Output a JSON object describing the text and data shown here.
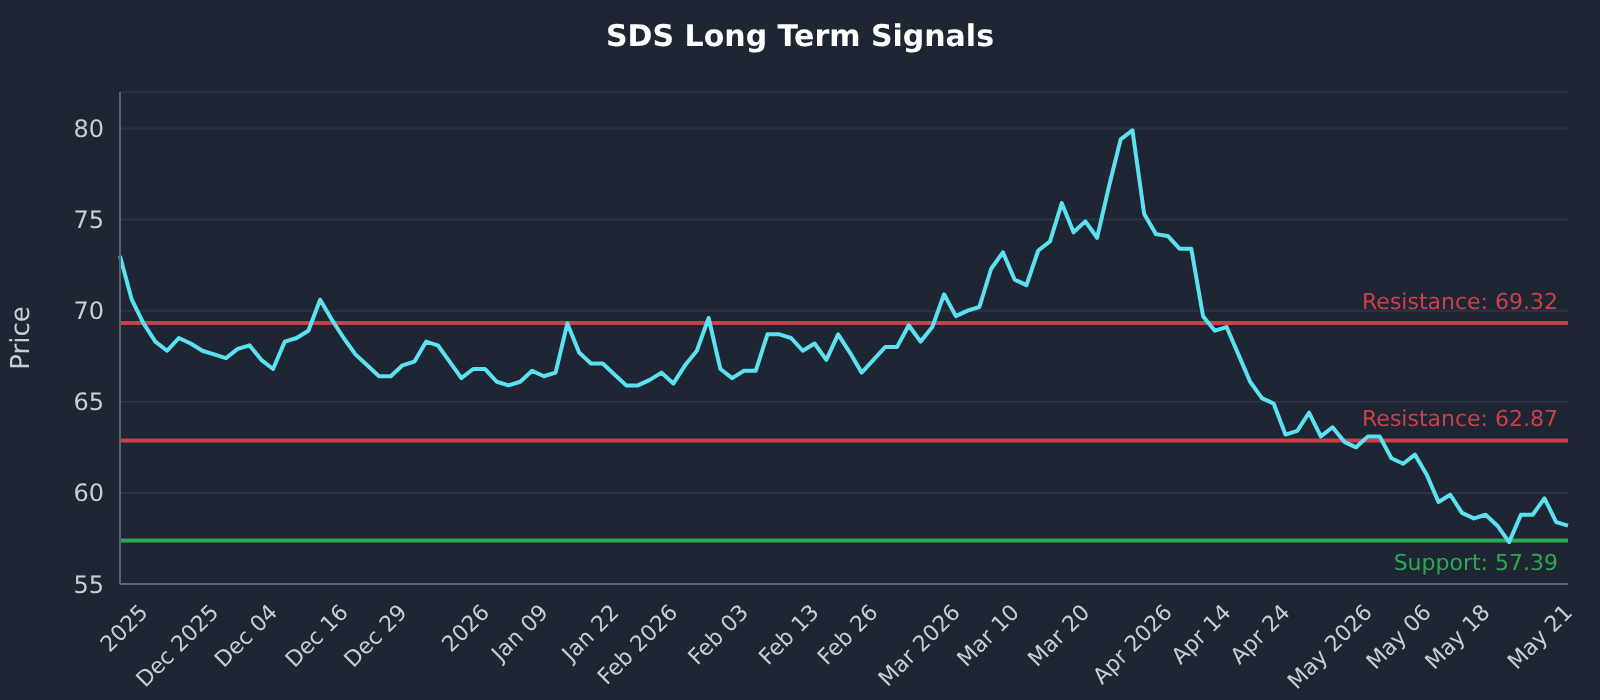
{
  "chart_data": {
    "type": "line",
    "title": "SDS Long Term Signals",
    "ylabel": "Price",
    "categories": [
      null,
      null,
      "2025",
      null,
      null,
      null,
      null,
      null,
      "Dec 2025",
      null,
      null,
      null,
      null,
      "Dec 04",
      null,
      null,
      null,
      null,
      null,
      "Dec 16",
      null,
      null,
      null,
      null,
      "Dec 29",
      null,
      null,
      null,
      null,
      null,
      null,
      "2026",
      null,
      null,
      null,
      null,
      "Jan 09",
      null,
      null,
      null,
      null,
      null,
      "Jan 22",
      null,
      null,
      null,
      null,
      "Feb 2026",
      null,
      null,
      null,
      null,
      null,
      "Feb 03",
      null,
      null,
      null,
      null,
      null,
      "Feb 13",
      null,
      null,
      null,
      null,
      "Feb 26",
      null,
      null,
      null,
      null,
      null,
      null,
      "Mar 2026",
      null,
      null,
      null,
      null,
      "Mar 10",
      null,
      null,
      null,
      null,
      null,
      "Mar 20",
      null,
      null,
      null,
      null,
      null,
      null,
      "Apr 2026",
      null,
      null,
      null,
      null,
      "Apr 14",
      null,
      null,
      null,
      null,
      "Apr 24",
      null,
      null,
      null,
      null,
      null,
      null,
      "May 2026",
      null,
      null,
      null,
      null,
      "May 06",
      null,
      null,
      null,
      null,
      "May 18",
      null,
      null,
      null,
      null,
      null,
      null,
      "May 21"
    ],
    "series": [
      {
        "color": "#5ce1f0",
        "values": [
          73.0,
          70.6,
          69.3,
          68.3,
          67.8,
          68.5,
          68.2,
          67.8,
          67.6,
          67.4,
          67.9,
          68.1,
          67.3,
          66.8,
          68.3,
          68.5,
          68.9,
          70.6,
          69.5,
          68.5,
          67.6,
          67.0,
          66.4,
          66.4,
          67.0,
          67.2,
          68.3,
          68.1,
          67.2,
          66.3,
          66.8,
          66.8,
          66.1,
          65.9,
          66.1,
          66.7,
          66.4,
          66.6,
          69.3,
          67.7,
          67.1,
          67.1,
          66.5,
          65.9,
          65.9,
          66.2,
          66.6,
          66.0,
          67.0,
          67.8,
          69.6,
          66.8,
          66.3,
          66.7,
          66.7,
          68.7,
          68.7,
          68.5,
          67.8,
          68.2,
          67.3,
          68.7,
          67.7,
          66.6,
          67.3,
          68.0,
          68.0,
          69.2,
          68.3,
          69.1,
          70.9,
          69.7,
          70.0,
          70.2,
          72.3,
          73.2,
          71.7,
          71.4,
          73.3,
          73.8,
          75.9,
          74.3,
          74.9,
          74.0,
          76.8,
          79.4,
          79.9,
          75.3,
          74.2,
          74.1,
          73.4,
          73.4,
          69.7,
          68.9,
          69.1,
          67.6,
          66.1,
          65.2,
          64.9,
          63.2,
          63.4,
          64.4,
          63.1,
          63.6,
          62.8,
          62.5,
          63.1,
          63.1,
          61.9,
          61.6,
          62.1,
          61.0,
          59.5,
          59.9,
          58.9,
          58.6,
          58.8,
          58.2,
          57.3,
          58.8,
          58.8,
          59.7,
          58.4,
          58.2
        ]
      }
    ],
    "ylim": [
      55,
      82
    ],
    "yticks": [
      55,
      60,
      65,
      70,
      75,
      80
    ],
    "grid": "y",
    "marker": "none",
    "ref_lines": [
      {
        "axis": "y",
        "value": 69.32,
        "label": "Resistance: 69.32",
        "color": "#c9404a"
      },
      {
        "axis": "y",
        "value": 62.87,
        "label": "Resistance: 62.87",
        "color": "#c9404a"
      },
      {
        "axis": "y",
        "value": 57.39,
        "label": "Support: 57.39",
        "color": "#2ea84f"
      }
    ]
  }
}
